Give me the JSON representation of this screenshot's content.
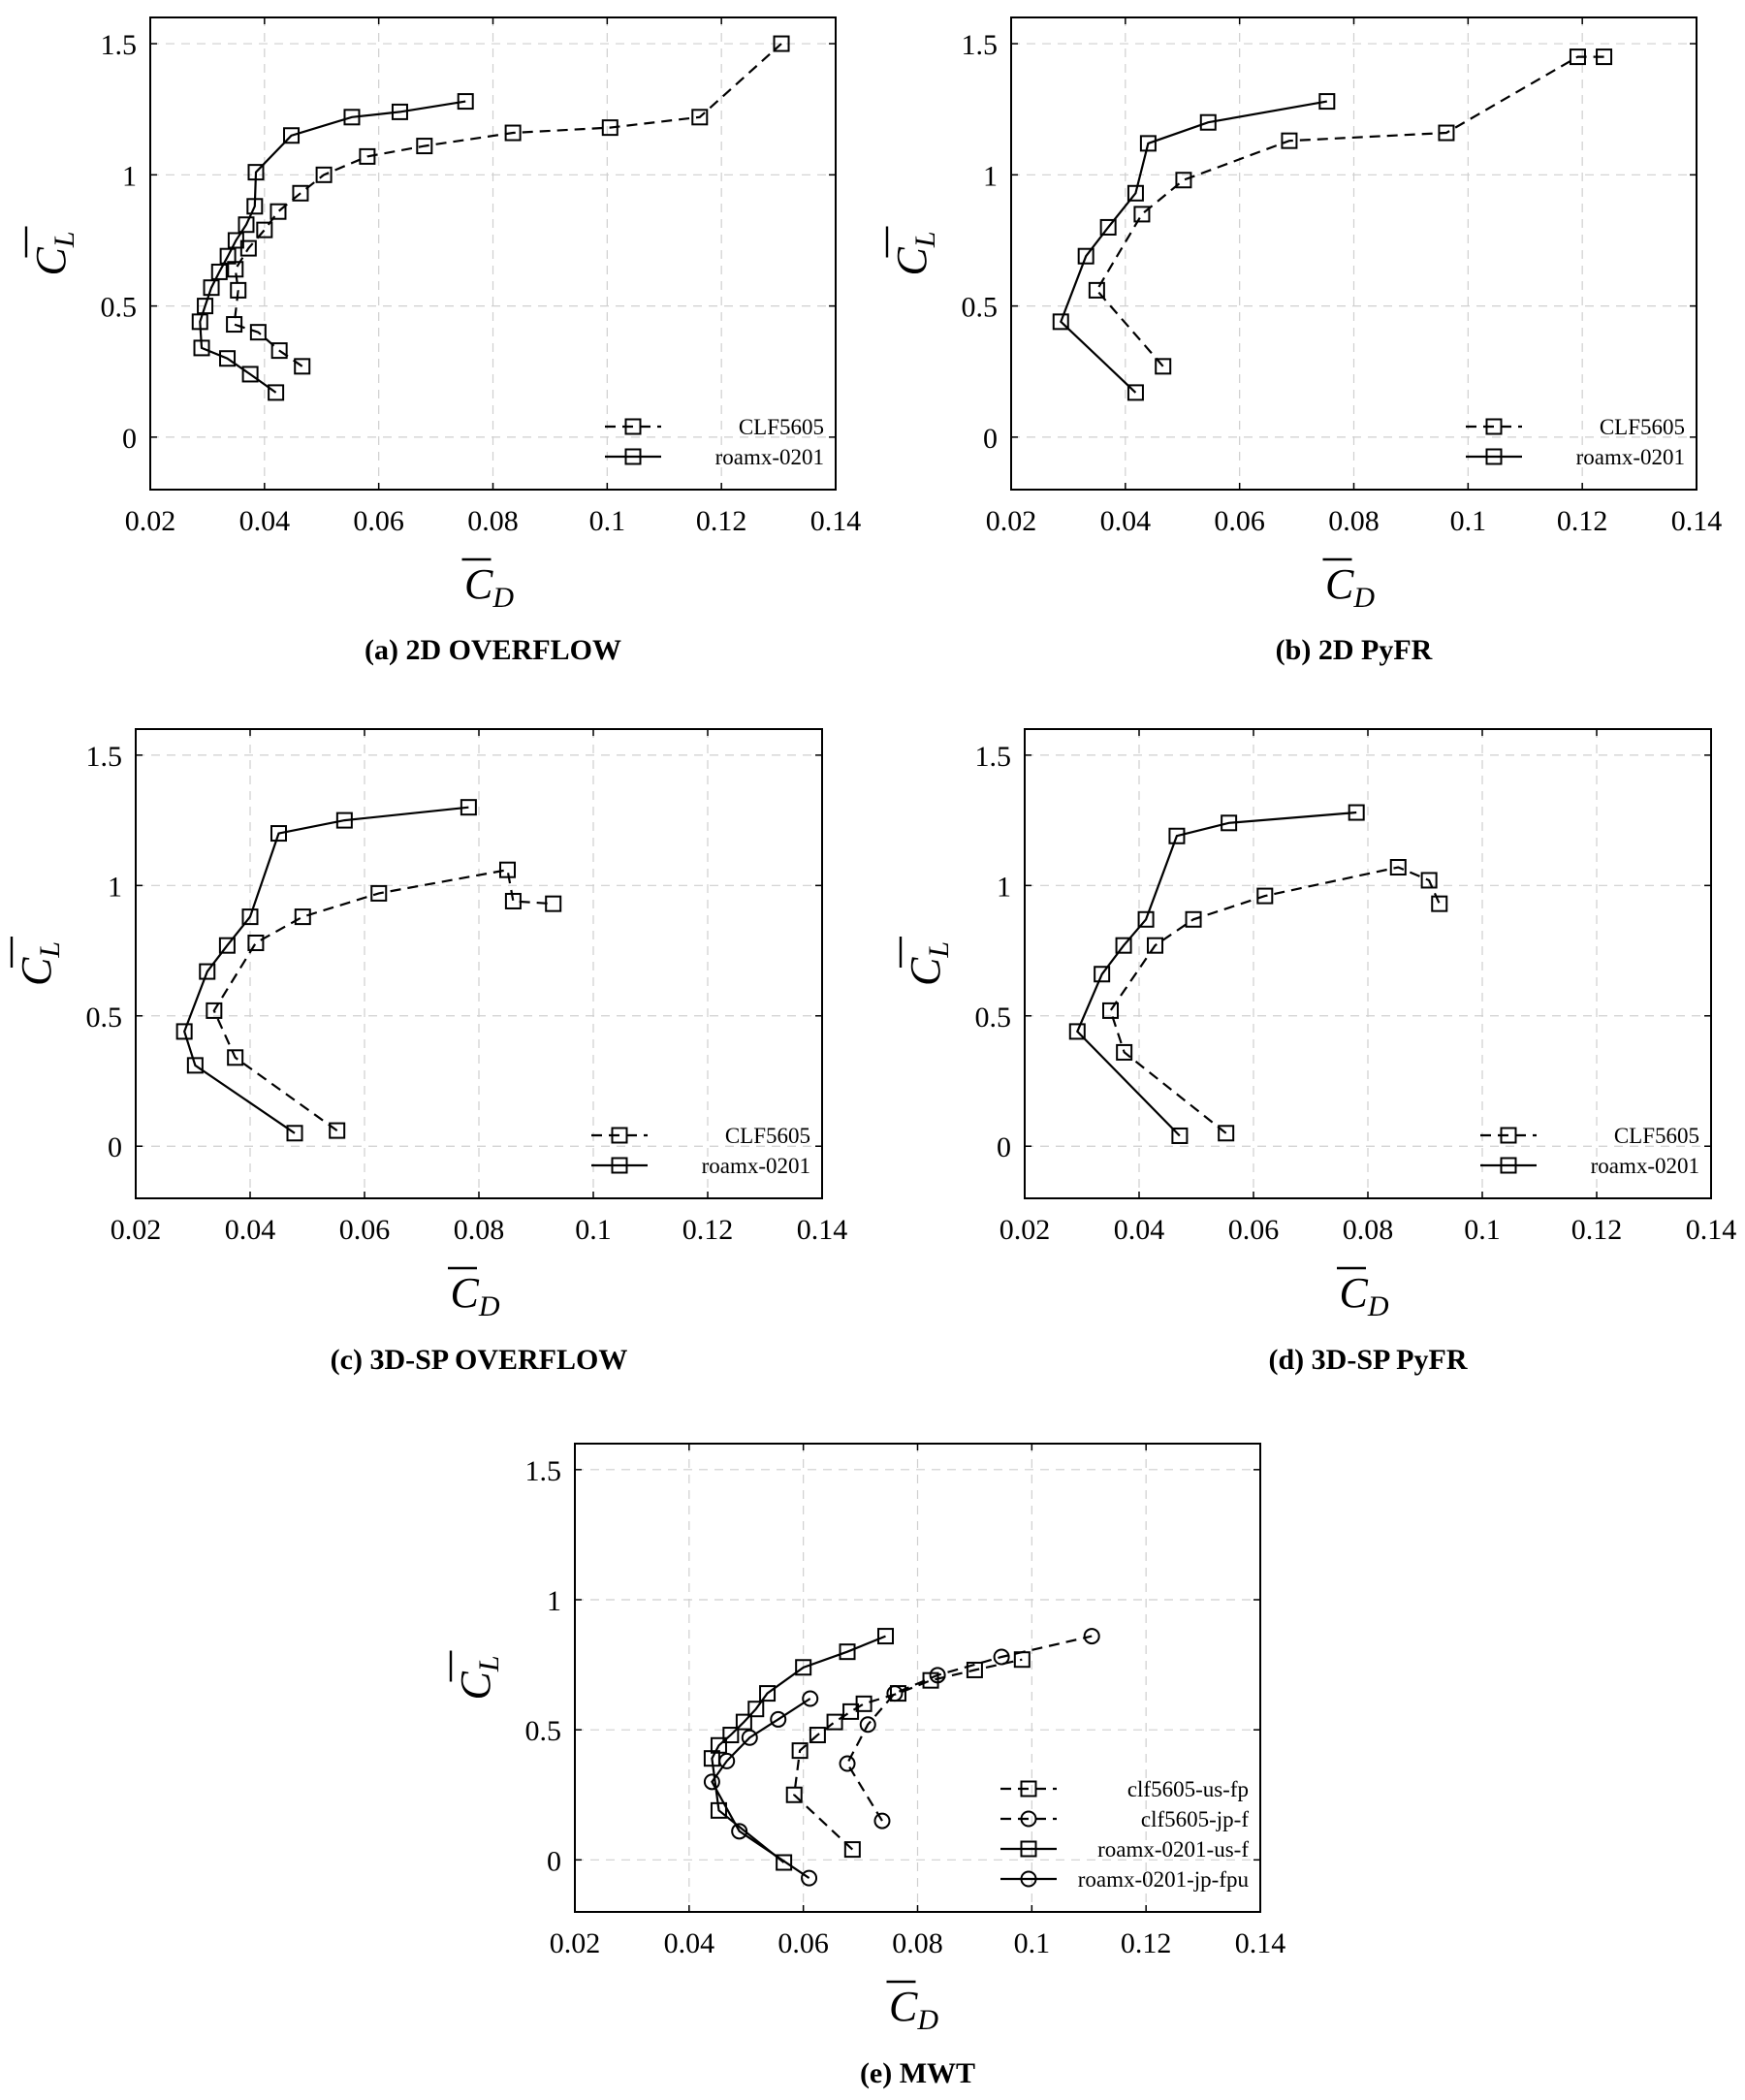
{
  "chart_data": [
    {
      "type": "line",
      "caption": "(a) 2D OVERFLOW",
      "xlabel": "C_D",
      "ylabel": "C_L",
      "xlim": [
        0.02,
        0.14
      ],
      "ylim": [
        -0.2,
        1.6
      ],
      "xticks": [
        "0.02",
        "0.04",
        "0.06",
        "0.08",
        "0.1",
        "0.12",
        "0.14"
      ],
      "yticks": [
        "0",
        "0.5",
        "1",
        "1.5"
      ],
      "grid": true,
      "legend_position": "bottom-right",
      "series": [
        {
          "name": "CLF5605",
          "line": "dashed",
          "marker": "square",
          "x": [
            0.0466,
            0.0426,
            0.0389,
            0.0347,
            0.0354,
            0.0349,
            0.0372,
            0.04,
            0.0424,
            0.0463,
            0.0504,
            0.058,
            0.068,
            0.0835,
            0.1005,
            0.1162,
            0.1305
          ],
          "y": [
            0.27,
            0.33,
            0.4,
            0.43,
            0.56,
            0.64,
            0.72,
            0.79,
            0.86,
            0.93,
            1.0,
            1.07,
            1.11,
            1.16,
            1.18,
            1.22,
            1.5
          ]
        },
        {
          "name": "roamx-0201",
          "line": "solid",
          "marker": "square",
          "x": [
            0.042,
            0.0375,
            0.0335,
            0.029,
            0.0287,
            0.0296,
            0.0307,
            0.0321,
            0.0336,
            0.035,
            0.0368,
            0.0383,
            0.0385,
            0.0447,
            0.0553,
            0.0637,
            0.0752
          ],
          "y": [
            0.17,
            0.24,
            0.3,
            0.34,
            0.44,
            0.5,
            0.57,
            0.63,
            0.69,
            0.75,
            0.81,
            0.88,
            1.01,
            1.15,
            1.22,
            1.24,
            1.28
          ]
        }
      ]
    },
    {
      "type": "line",
      "caption": "(b) 2D PyFR",
      "xlabel": "C_D",
      "ylabel": "C_L",
      "xlim": [
        0.02,
        0.14
      ],
      "ylim": [
        -0.2,
        1.6
      ],
      "xticks": [
        "0.02",
        "0.04",
        "0.06",
        "0.08",
        "0.1",
        "0.12",
        "0.14"
      ],
      "yticks": [
        "0",
        "0.5",
        "1",
        "1.5"
      ],
      "grid": true,
      "legend_position": "bottom-right",
      "series": [
        {
          "name": "CLF5605",
          "line": "dashed",
          "marker": "square",
          "x": [
            0.0466,
            0.035,
            0.0429,
            0.0502,
            0.0687,
            0.0962,
            0.1192,
            0.1238
          ],
          "y": [
            0.27,
            0.56,
            0.85,
            0.98,
            1.13,
            1.16,
            1.45,
            1.45
          ]
        },
        {
          "name": "roamx-0201",
          "line": "solid",
          "marker": "square",
          "x": [
            0.0418,
            0.0287,
            0.0331,
            0.037,
            0.0418,
            0.044,
            0.0545,
            0.0753
          ],
          "y": [
            0.17,
            0.44,
            0.69,
            0.8,
            0.93,
            1.12,
            1.2,
            1.28
          ]
        }
      ]
    },
    {
      "type": "line",
      "caption": "(c) 3D-SP OVERFLOW",
      "xlabel": "C_D",
      "ylabel": "C_L",
      "xlim": [
        0.02,
        0.14
      ],
      "ylim": [
        -0.2,
        1.6
      ],
      "xticks": [
        "0.02",
        "0.04",
        "0.06",
        "0.08",
        "0.1",
        "0.12",
        "0.14"
      ],
      "yticks": [
        "0",
        "0.5",
        "1",
        "1.5"
      ],
      "grid": true,
      "legend_position": "bottom-right",
      "series": [
        {
          "name": "CLF5605",
          "line": "dashed",
          "marker": "square",
          "x": [
            0.0552,
            0.0374,
            0.0337,
            0.041,
            0.0492,
            0.0625,
            0.085,
            0.086,
            0.093
          ],
          "y": [
            0.06,
            0.34,
            0.52,
            0.78,
            0.88,
            0.97,
            1.06,
            0.94,
            0.93
          ]
        },
        {
          "name": "roamx-0201",
          "line": "solid",
          "marker": "square",
          "x": [
            0.0478,
            0.0304,
            0.0285,
            0.0325,
            0.036,
            0.04,
            0.045,
            0.0565,
            0.0782
          ],
          "y": [
            0.05,
            0.31,
            0.44,
            0.67,
            0.77,
            0.88,
            1.2,
            1.25,
            1.3
          ]
        }
      ]
    },
    {
      "type": "line",
      "caption": "(d) 3D-SP PyFR",
      "xlabel": "C_D",
      "ylabel": "C_L",
      "xlim": [
        0.02,
        0.14
      ],
      "ylim": [
        -0.2,
        1.6
      ],
      "xticks": [
        "0.02",
        "0.04",
        "0.06",
        "0.08",
        "0.1",
        "0.12",
        "0.14"
      ],
      "yticks": [
        "0",
        "0.5",
        "1",
        "1.5"
      ],
      "grid": true,
      "legend_position": "bottom-right",
      "series": [
        {
          "name": "CLF5605",
          "line": "dashed",
          "marker": "square",
          "x": [
            0.0552,
            0.0374,
            0.035,
            0.0428,
            0.0495,
            0.062,
            0.0853,
            0.0907,
            0.0925
          ],
          "y": [
            0.05,
            0.36,
            0.52,
            0.77,
            0.87,
            0.96,
            1.07,
            1.02,
            0.93
          ]
        },
        {
          "name": "roamx-0201",
          "line": "solid",
          "marker": "square",
          "x": [
            0.0471,
            0.0292,
            0.0335,
            0.0373,
            0.0412,
            0.0466,
            0.0557,
            0.078
          ],
          "y": [
            0.04,
            0.44,
            0.66,
            0.77,
            0.87,
            1.19,
            1.24,
            1.28
          ]
        }
      ]
    },
    {
      "type": "line",
      "caption": "(e) MWT",
      "xlabel": "C_D",
      "ylabel": "C_L",
      "xlim": [
        0.02,
        0.14
      ],
      "ylim": [
        -0.2,
        1.6
      ],
      "xticks": [
        "0.02",
        "0.04",
        "0.06",
        "0.08",
        "0.1",
        "0.12",
        "0.14"
      ],
      "yticks": [
        "0",
        "0.5",
        "1",
        "1.5"
      ],
      "grid": true,
      "legend_position": "bottom-right",
      "series": [
        {
          "name": "clf5605-us-fp",
          "line": "dashed",
          "marker": "square",
          "x": [
            0.0686,
            0.0584,
            0.0594,
            0.0625,
            0.0655,
            0.0683,
            0.0706,
            0.0766,
            0.0823,
            0.09,
            0.0983
          ],
          "y": [
            0.04,
            0.25,
            0.42,
            0.48,
            0.53,
            0.57,
            0.6,
            0.64,
            0.69,
            0.73,
            0.77
          ]
        },
        {
          "name": "clf5605-jp-f",
          "line": "dashed",
          "marker": "circle",
          "x": [
            0.0738,
            0.0677,
            0.0713,
            0.076,
            0.0835,
            0.0947,
            0.1105
          ],
          "y": [
            0.15,
            0.37,
            0.52,
            0.64,
            0.71,
            0.78,
            0.86
          ]
        },
        {
          "name": "roamx-0201-us-f",
          "line": "solid",
          "marker": "square",
          "x": [
            0.0566,
            0.0452,
            0.044,
            0.0452,
            0.0473,
            0.0496,
            0.0517,
            0.0537,
            0.06,
            0.0677,
            0.0744
          ],
          "y": [
            -0.01,
            0.19,
            0.39,
            0.44,
            0.48,
            0.53,
            0.58,
            0.64,
            0.74,
            0.8,
            0.86
          ]
        },
        {
          "name": "roamx-0201-jp-fpu",
          "line": "solid",
          "marker": "circle",
          "x": [
            0.061,
            0.0488,
            0.044,
            0.0466,
            0.0506,
            0.0556,
            0.0612
          ],
          "y": [
            -0.07,
            0.11,
            0.3,
            0.38,
            0.47,
            0.54,
            0.62
          ]
        }
      ]
    }
  ]
}
